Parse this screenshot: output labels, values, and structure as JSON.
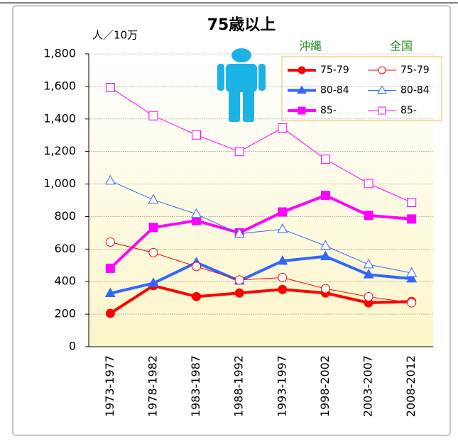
{
  "chart_data": {
    "type": "line",
    "title": "75歳以上",
    "y_label": "人／10万",
    "categories": [
      "1973-1977",
      "1978-1982",
      "1983-1987",
      "1988-1992",
      "1993-1997",
      "1998-2002",
      "2003-2007",
      "2008-2012"
    ],
    "legend_titles": [
      "沖縄",
      "全国"
    ],
    "series": [
      {
        "name": "75-79",
        "color": "#ff0000",
        "marker": "circle",
        "filled": true,
        "width": 4,
        "values": [
          205,
          375,
          308,
          330,
          352,
          330,
          270,
          278
        ]
      },
      {
        "name": "80-84",
        "color": "#3366ff",
        "marker": "triangle",
        "filled": true,
        "width": 4,
        "values": [
          328,
          390,
          517,
          405,
          527,
          555,
          443,
          418
        ]
      },
      {
        "name": "85-",
        "color": "#ff00ff",
        "marker": "square",
        "filled": true,
        "width": 4,
        "values": [
          482,
          733,
          775,
          700,
          828,
          930,
          807,
          785
        ]
      },
      {
        "name": "75-79",
        "color": "#ff0000",
        "marker": "circle",
        "filled": false,
        "width": 1,
        "values": [
          643,
          578,
          493,
          410,
          425,
          357,
          307,
          270
        ]
      },
      {
        "name": "80-84",
        "color": "#3366ff",
        "marker": "triangle",
        "filled": false,
        "width": 1,
        "values": [
          1020,
          903,
          815,
          695,
          722,
          620,
          505,
          453
        ]
      },
      {
        "name": "85-",
        "color": "#ff00ff",
        "marker": "square",
        "filled": false,
        "width": 1,
        "values": [
          1593,
          1420,
          1302,
          1200,
          1345,
          1152,
          1003,
          887
        ]
      }
    ],
    "ylim": [
      0,
      1800
    ],
    "yticks": [
      0,
      200,
      400,
      600,
      800,
      {
        "value": 1000,
        "label": "1,000"
      },
      {
        "value": 1200,
        "label": "1,200"
      },
      {
        "value": 1400,
        "label": "1,400"
      },
      {
        "value": 1600,
        "label": "1,600"
      },
      {
        "value": 1800,
        "label": "1,800"
      }
    ],
    "grid": true
  }
}
